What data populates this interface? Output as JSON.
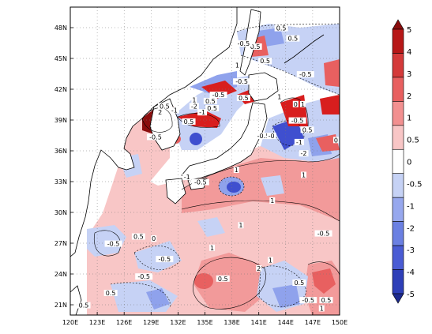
{
  "map": {
    "lon_range": [
      120,
      150
    ],
    "lat_range": [
      20,
      50
    ],
    "x_ticks": [
      "120E",
      "123E",
      "126E",
      "129E",
      "132E",
      "135E",
      "138E",
      "141E",
      "144E",
      "147E",
      "150E"
    ],
    "y_ticks": [
      "21N",
      "24N",
      "27N",
      "30N",
      "33N",
      "36N",
      "39N",
      "42N",
      "45N",
      "48N"
    ],
    "land_color": "#ffffff",
    "grid": "dotted",
    "contour_labels": [
      {
        "text": "0.5",
        "lon": 127.6,
        "lat": 27.5
      },
      {
        "text": "0",
        "lon": 129.3,
        "lat": 27.3
      },
      {
        "text": "-0.5",
        "lon": 124.8,
        "lat": 26.8
      },
      {
        "text": "-0.5",
        "lon": 128.2,
        "lat": 23.6
      },
      {
        "text": "0.5",
        "lon": 124.5,
        "lat": 22.0
      },
      {
        "text": "-0.5",
        "lon": 130.5,
        "lat": 25.3
      },
      {
        "text": "0.5",
        "lon": 121.5,
        "lat": 20.8
      },
      {
        "text": "1",
        "lon": 135.8,
        "lat": 26.4
      },
      {
        "text": "1",
        "lon": 139.0,
        "lat": 28.6
      },
      {
        "text": "1",
        "lon": 142.3,
        "lat": 25.2
      },
      {
        "text": "2",
        "lon": 141.0,
        "lat": 24.4
      },
      {
        "text": "0.5",
        "lon": 137.0,
        "lat": 23.4
      },
      {
        "text": "0.5",
        "lon": 145.5,
        "lat": 23.0
      },
      {
        "text": "-0.5",
        "lon": 146.5,
        "lat": 21.3
      },
      {
        "text": "0.5",
        "lon": 148.5,
        "lat": 21.3
      },
      {
        "text": "1",
        "lon": 148.0,
        "lat": 20.5
      },
      {
        "text": "1",
        "lon": 142.5,
        "lat": 31.0
      },
      {
        "text": "1",
        "lon": 138.5,
        "lat": 34.0
      },
      {
        "text": "1",
        "lon": 146.0,
        "lat": 33.5
      },
      {
        "text": "-1",
        "lon": 133.0,
        "lat": 33.3
      },
      {
        "text": "-0.5",
        "lon": 134.5,
        "lat": 32.8
      },
      {
        "text": "0.5",
        "lon": 133.2,
        "lat": 38.7
      },
      {
        "text": "-0.5",
        "lon": 129.5,
        "lat": 37.2
      },
      {
        "text": "2",
        "lon": 130.0,
        "lat": 39.6
      },
      {
        "text": "-1",
        "lon": 131.6,
        "lat": 39.8
      },
      {
        "text": "0.5",
        "lon": 130.5,
        "lat": 40.2
      },
      {
        "text": "-2",
        "lon": 133.8,
        "lat": 40.2
      },
      {
        "text": "1",
        "lon": 133.8,
        "lat": 40.8
      },
      {
        "text": "0.5",
        "lon": 135.8,
        "lat": 40.0
      },
      {
        "text": "0.5",
        "lon": 135.6,
        "lat": 40.7
      },
      {
        "text": "-0.5",
        "lon": 136.5,
        "lat": 41.3
      },
      {
        "text": "-1",
        "lon": 134.7,
        "lat": 39.6
      },
      {
        "text": "-0.5",
        "lon": 139.1,
        "lat": 42.6
      },
      {
        "text": "0.5",
        "lon": 139.3,
        "lat": 41.0
      },
      {
        "text": "1",
        "lon": 138.6,
        "lat": 44.2
      },
      {
        "text": "0.5",
        "lon": 140.6,
        "lat": 46.0
      },
      {
        "text": "0.5",
        "lon": 141.7,
        "lat": 44.6
      },
      {
        "text": "-0.5",
        "lon": 139.3,
        "lat": 46.3
      },
      {
        "text": "-0.5",
        "lon": 146.2,
        "lat": 43.3
      },
      {
        "text": "0.5",
        "lon": 143.5,
        "lat": 47.8
      },
      {
        "text": "0.5",
        "lon": 144.8,
        "lat": 46.8
      },
      {
        "text": "1",
        "lon": 143.3,
        "lat": 41.1
      },
      {
        "text": "0",
        "lon": 145.1,
        "lat": 40.4
      },
      {
        "text": "1",
        "lon": 145.9,
        "lat": 40.4
      },
      {
        "text": "-0.5",
        "lon": 145.3,
        "lat": 38.8
      },
      {
        "text": "-0.5",
        "lon": 141.5,
        "lat": 37.3
      },
      {
        "text": "-0",
        "lon": 142.4,
        "lat": 37.3
      },
      {
        "text": "-1",
        "lon": 145.5,
        "lat": 36.7
      },
      {
        "text": "0.5",
        "lon": 146.4,
        "lat": 37.9
      },
      {
        "text": "-2",
        "lon": 146.0,
        "lat": 35.6
      },
      {
        "text": "0",
        "lon": 149.6,
        "lat": 36.9
      },
      {
        "text": "-0.5",
        "lon": 148.2,
        "lat": 27.8
      }
    ]
  },
  "colorbar": {
    "labels": [
      "5",
      "4",
      "3",
      "2",
      "1",
      "0.5",
      "0",
      "-0.5",
      "-1",
      "-2",
      "-3",
      "-4",
      "-5"
    ],
    "colors": [
      "#8b0e0e",
      "#b71818",
      "#d43a3a",
      "#e86060",
      "#f29090",
      "#f8c6c6",
      "#ffffff",
      "#c6d2f5",
      "#97a8ee",
      "#6b80e2",
      "#4a5cd4",
      "#2e3fb8",
      "#1d2a8f"
    ]
  },
  "colors": {
    "strong_positive": "#d81e1e",
    "positive": "#f29a9a",
    "weak_positive": "#f8c6c6",
    "weak_negative": "#c6d2f5",
    "negative": "#8fa2ec",
    "strong_negative": "#3f4fcf"
  }
}
